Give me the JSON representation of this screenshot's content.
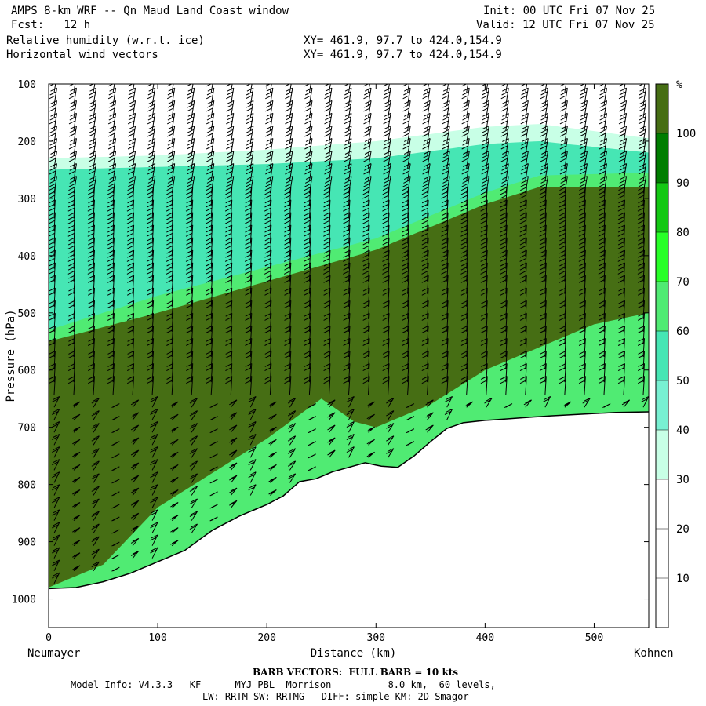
{
  "header": {
    "title": "AMPS 8-km WRF -- Qn Maud Land Coast window",
    "forecast": "Fcst:   12 h",
    "init": "Init: 00 UTC Fri 07 Nov 25",
    "valid": "Valid: 12 UTC Fri 07 Nov 25",
    "field1": "Relative humidity (w.r.t. ice)",
    "field2": "Horizontal wind vectors",
    "xy1": "XY= 461.9, 97.7 to 424.0,154.9",
    "xy2": "XY= 461.9, 97.7 to 424.0,154.9"
  },
  "footer": {
    "barb_note": "BARB VECTORS:  FULL BARB = 10 kts",
    "model_line1": "Model Info: V4.3.3   KF      MYJ PBL  Morrison          8.0 km,  60 levels,",
    "model_line2": "LW: RRTM SW: RRTMG   DIFF: simple KM: 2D Smagor"
  },
  "chart_data": {
    "type": "heatmap",
    "xlabel": "Distance (km)",
    "ylabel": "Pressure (hPa)",
    "xlim": [
      0,
      550
    ],
    "ylim": [
      1050,
      100
    ],
    "x_ticks": [
      0,
      100,
      200,
      300,
      400,
      500
    ],
    "y_ticks": [
      100,
      200,
      300,
      400,
      500,
      600,
      700,
      800,
      900,
      1000
    ],
    "x_start_label": "Neumayer",
    "x_end_label": "Kohnen",
    "colorbar": {
      "unit": "%",
      "levels": [
        10,
        20,
        30,
        40,
        50,
        60,
        70,
        80,
        90,
        100
      ],
      "colors": [
        "#ffffff",
        "#ffffff",
        "#ffffff",
        "#c8ffe6",
        "#78f0d2",
        "#46e6b4",
        "#50eb73",
        "#28ff28",
        "#14c814",
        "#007d00",
        "#466e14"
      ]
    },
    "terrain_surface_hpa": {
      "x": [
        0,
        25,
        50,
        75,
        100,
        125,
        150,
        175,
        200,
        215,
        230,
        245,
        260,
        275,
        290,
        305,
        320,
        335,
        350,
        365,
        380,
        400,
        430,
        460,
        490,
        520,
        550
      ],
      "p": [
        982,
        980,
        970,
        955,
        935,
        915,
        880,
        855,
        835,
        820,
        795,
        790,
        778,
        770,
        762,
        768,
        770,
        750,
        725,
        702,
        692,
        688,
        684,
        680,
        677,
        674,
        673
      ]
    },
    "rh_bands_hpa": [
      {
        "level": 30,
        "x": [
          0,
          100,
          200,
          300,
          400,
          450,
          550
        ],
        "p_top": [
          230,
          225,
          215,
          200,
          175,
          170,
          195
        ]
      },
      {
        "level": 50,
        "x": [
          0,
          100,
          200,
          300,
          400,
          450,
          550
        ],
        "p_top": [
          250,
          245,
          240,
          230,
          205,
          200,
          220
        ]
      },
      {
        "level": 60,
        "x": [
          0,
          100,
          200,
          300,
          400,
          450,
          550
        ],
        "p_top": [
          530,
          470,
          420,
          370,
          290,
          260,
          255
        ]
      },
      {
        "level": 100,
        "x": [
          0,
          100,
          200,
          300,
          400,
          450,
          550
        ],
        "p_top": [
          550,
          500,
          445,
          390,
          310,
          280,
          280
        ]
      }
    ],
    "rh_100_bottom_hpa": {
      "x": [
        0,
        50,
        100,
        150,
        200,
        250,
        280,
        300,
        350,
        400,
        450,
        500,
        550
      ],
      "p": [
        980,
        940,
        840,
        780,
        720,
        650,
        690,
        700,
        660,
        600,
        560,
        520,
        500
      ]
    }
  }
}
